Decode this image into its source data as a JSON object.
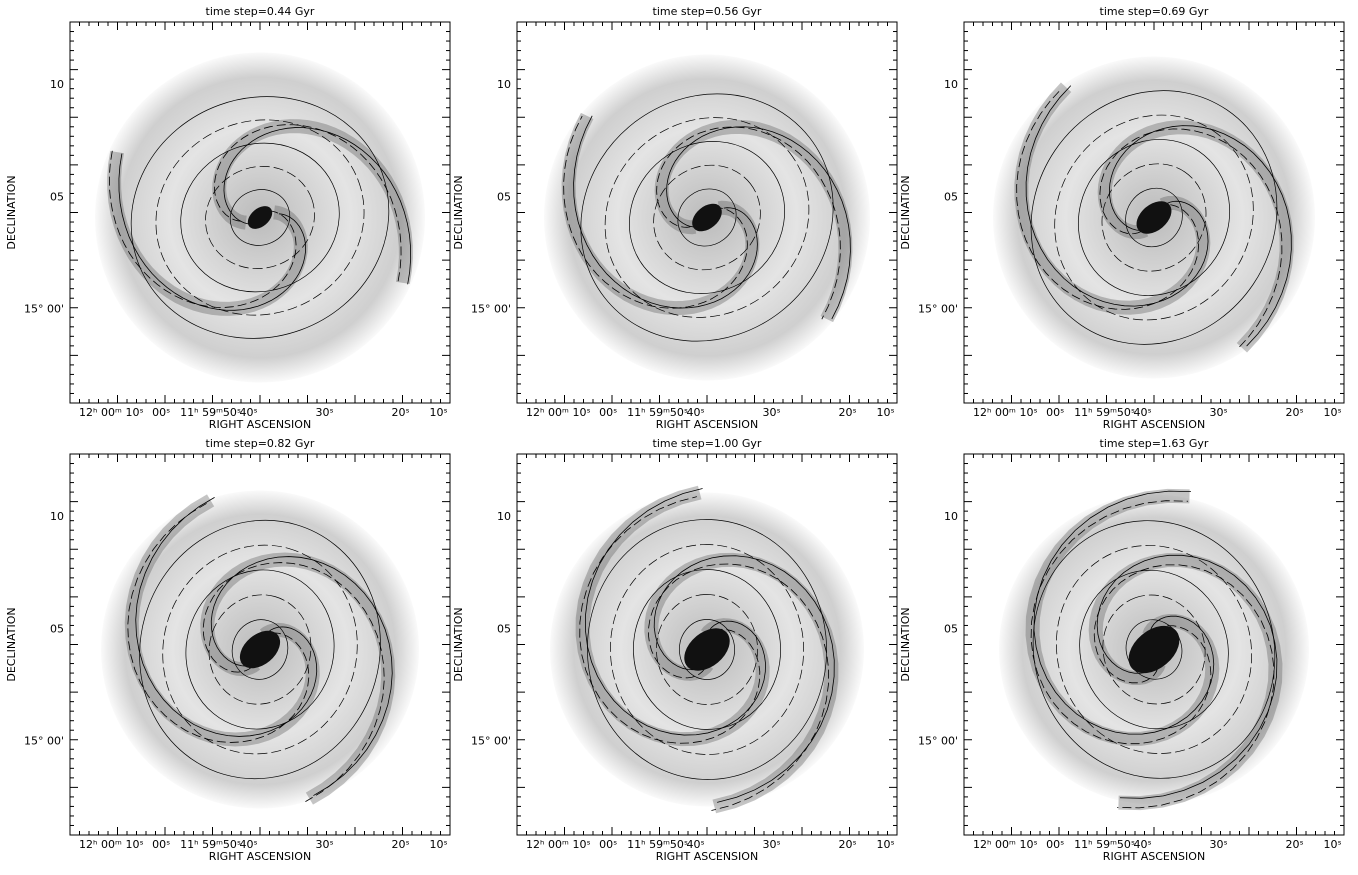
{
  "panels": [
    {
      "title": "time step=0.44 Gyr"
    },
    {
      "title": "time step=0.56 Gyr"
    },
    {
      "title": "time step=0.69 Gyr"
    },
    {
      "title": "time step=0.82 Gyr"
    },
    {
      "title": "time step=1.00 Gyr"
    },
    {
      "title": "time step=1.63 Gyr"
    }
  ],
  "axes": {
    "x_label": "RIGHT ASCENSION",
    "y_label": "DECLINATION",
    "x_ticks": [
      "12ʰ 00ᵐ",
      "10ˢ",
      "00ˢ",
      "11ʰ 59ᵐ50ˢ",
      "40ˢ",
      "30ˢ",
      "20ˢ",
      "10ˢ"
    ],
    "y_ticks": [
      "10",
      "05",
      "15° 00'"
    ]
  }
}
